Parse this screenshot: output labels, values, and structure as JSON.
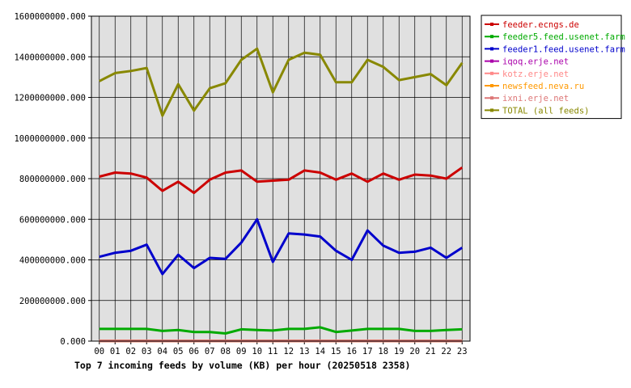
{
  "chart_data": {
    "type": "line",
    "title": "Top 7 incoming feeds by volume (KB) per hour (20250518 2358)",
    "xlabel": "",
    "ylabel": "",
    "categories": [
      "00",
      "01",
      "02",
      "03",
      "04",
      "05",
      "06",
      "07",
      "08",
      "09",
      "10",
      "11",
      "12",
      "13",
      "14",
      "15",
      "16",
      "17",
      "18",
      "19",
      "20",
      "21",
      "22",
      "23"
    ],
    "ylim": [
      0,
      1600000000
    ],
    "yticks": [
      0,
      200000000,
      400000000,
      600000000,
      800000000,
      1000000000,
      1200000000,
      1400000000,
      1600000000
    ],
    "ytick_labels": [
      "0.000",
      "200000000.000",
      "400000000.000",
      "600000000.000",
      "800000000.000",
      "1000000000.000",
      "1200000000.000",
      "1400000000.000",
      "1600000000.000"
    ],
    "grid": true,
    "legend_position": "top-right",
    "background": "#e0e0e0",
    "series": [
      {
        "name": "feeder.ecngs.de",
        "color": "#cc0000",
        "values": [
          810000000,
          830000000,
          825000000,
          805000000,
          740000000,
          785000000,
          730000000,
          795000000,
          830000000,
          840000000,
          785000000,
          790000000,
          795000000,
          840000000,
          830000000,
          795000000,
          825000000,
          785000000,
          825000000,
          795000000,
          820000000,
          815000000,
          800000000,
          855000000
        ]
      },
      {
        "name": "feeder5.feed.usenet.farm",
        "color": "#00aa00",
        "values": [
          60000000,
          60000000,
          60000000,
          60000000,
          50000000,
          55000000,
          45000000,
          45000000,
          38000000,
          58000000,
          55000000,
          52000000,
          60000000,
          60000000,
          68000000,
          45000000,
          52000000,
          60000000,
          60000000,
          60000000,
          50000000,
          50000000,
          55000000,
          58000000
        ]
      },
      {
        "name": "feeder1.feed.usenet.farm",
        "color": "#0000cc",
        "values": [
          415000000,
          435000000,
          445000000,
          475000000,
          330000000,
          425000000,
          360000000,
          410000000,
          405000000,
          485000000,
          600000000,
          390000000,
          530000000,
          525000000,
          515000000,
          445000000,
          400000000,
          545000000,
          470000000,
          435000000,
          440000000,
          460000000,
          410000000,
          460000000
        ]
      },
      {
        "name": "iqoq.erje.net",
        "color": "#aa00aa",
        "values": [
          1000000,
          1000000,
          1000000,
          1000000,
          1000000,
          1000000,
          1000000,
          1000000,
          1000000,
          1000000,
          1000000,
          1000000,
          1000000,
          1000000,
          1000000,
          1000000,
          1000000,
          1000000,
          1000000,
          1000000,
          1000000,
          1000000,
          1000000,
          1000000
        ]
      },
      {
        "name": "kotz.erje.net",
        "color": "#ff8888",
        "values": [
          1000000,
          1000000,
          1000000,
          1000000,
          1000000,
          1000000,
          1000000,
          1000000,
          1000000,
          1000000,
          1000000,
          1000000,
          1000000,
          1000000,
          1000000,
          1000000,
          1000000,
          1000000,
          1000000,
          1000000,
          1000000,
          1000000,
          1000000,
          1000000
        ]
      },
      {
        "name": "newsfeed.neva.ru",
        "color": "#ff9900",
        "values": [
          1000000,
          1000000,
          1000000,
          1000000,
          1000000,
          1000000,
          1000000,
          1000000,
          1000000,
          1000000,
          1000000,
          1000000,
          1000000,
          1000000,
          1000000,
          1000000,
          1000000,
          1000000,
          1000000,
          1000000,
          1000000,
          1000000,
          1000000,
          1000000
        ]
      },
      {
        "name": "ixni.erje.net",
        "color": "#dd7777",
        "values": [
          1000000,
          1000000,
          1000000,
          1000000,
          1000000,
          1000000,
          1000000,
          1000000,
          1000000,
          1000000,
          1000000,
          1000000,
          1000000,
          1000000,
          1000000,
          1000000,
          1000000,
          1000000,
          1000000,
          1000000,
          1000000,
          1000000,
          1000000,
          1000000
        ]
      },
      {
        "name": "TOTAL (all feeds)",
        "color": "#888800",
        "values": [
          1280000000,
          1320000000,
          1330000000,
          1345000000,
          1110000000,
          1265000000,
          1135000000,
          1245000000,
          1270000000,
          1385000000,
          1440000000,
          1225000000,
          1385000000,
          1420000000,
          1410000000,
          1275000000,
          1275000000,
          1385000000,
          1350000000,
          1285000000,
          1300000000,
          1315000000,
          1260000000,
          1370000000
        ]
      }
    ]
  }
}
